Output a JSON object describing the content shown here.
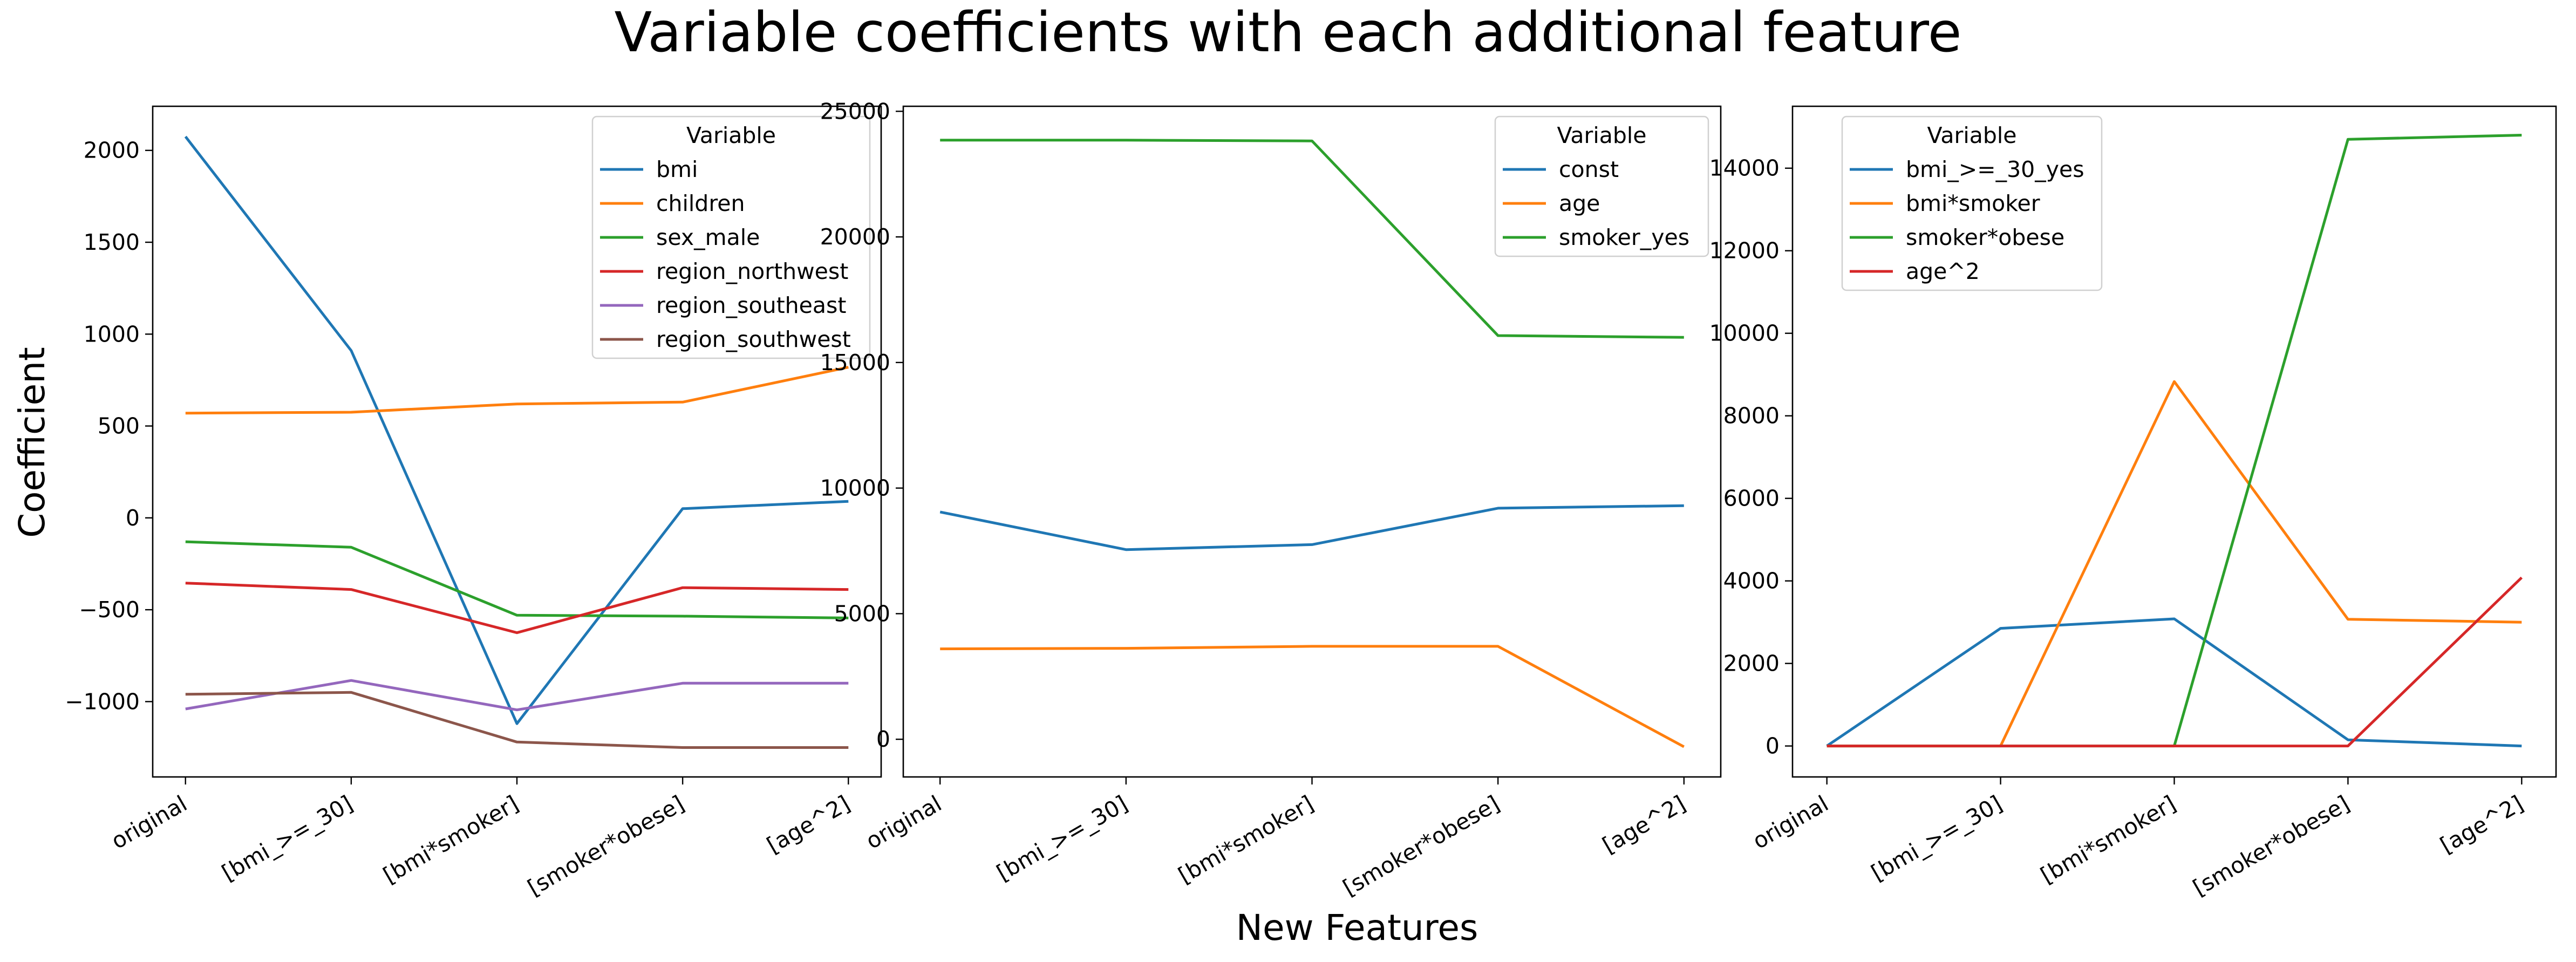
{
  "figure": {
    "title": "Variable coefficients with each additional feature",
    "xlabel": "New Features",
    "ylabel": "Coefficient"
  },
  "chart_data": [
    {
      "type": "line",
      "categories": [
        "original",
        "[bmi_>=_30]",
        "[bmi*smoker]",
        "[smoker*obese]",
        "[age^2]"
      ],
      "ylim": [
        -1410,
        2240
      ],
      "yticks": [
        -1000,
        -500,
        0,
        500,
        1000,
        1500,
        2000
      ],
      "grid": false,
      "legend": {
        "title": "Variable",
        "placement": "upper right"
      },
      "series": [
        {
          "name": "bmi",
          "color": "#1f77b4",
          "values": [
            2075,
            910,
            -1120,
            50,
            90
          ]
        },
        {
          "name": "children",
          "color": "#ff7f0e",
          "values": [
            570,
            575,
            620,
            630,
            820
          ]
        },
        {
          "name": "sex_male",
          "color": "#2ca02c",
          "values": [
            -130,
            -160,
            -530,
            -535,
            -545
          ]
        },
        {
          "name": "region_northwest",
          "color": "#d62728",
          "values": [
            -355,
            -390,
            -625,
            -380,
            -390
          ]
        },
        {
          "name": "region_southeast",
          "color": "#9467bd",
          "values": [
            -1040,
            -885,
            -1045,
            -900,
            -900
          ]
        },
        {
          "name": "region_southwest",
          "color": "#8c564b",
          "values": [
            -960,
            -950,
            -1220,
            -1250,
            -1250
          ]
        }
      ]
    },
    {
      "type": "line",
      "categories": [
        "original",
        "[bmi_>=_30]",
        "[bmi*smoker]",
        "[smoker*obese]",
        "[age^2]"
      ],
      "ylim": [
        -1500,
        25200
      ],
      "yticks": [
        0,
        5000,
        10000,
        15000,
        20000,
        25000
      ],
      "grid": false,
      "legend": {
        "title": "Variable",
        "placement": "upper right"
      },
      "series": [
        {
          "name": "const",
          "color": "#1f77b4",
          "values": [
            9050,
            7550,
            7750,
            9200,
            9300
          ]
        },
        {
          "name": "age",
          "color": "#ff7f0e",
          "values": [
            3600,
            3620,
            3700,
            3700,
            -300
          ]
        },
        {
          "name": "smoker_yes",
          "color": "#2ca02c",
          "values": [
            23850,
            23850,
            23820,
            16070,
            16000
          ]
        }
      ]
    },
    {
      "type": "line",
      "categories": [
        "original",
        "[bmi_>=_30]",
        "[bmi*smoker]",
        "[smoker*obese]",
        "[age^2]"
      ],
      "ylim": [
        -750,
        15500
      ],
      "yticks": [
        0,
        2000,
        4000,
        6000,
        8000,
        10000,
        12000,
        14000
      ],
      "grid": false,
      "legend": {
        "title": "Variable",
        "placement": "upper left"
      },
      "series": [
        {
          "name": "bmi_>=_30_yes",
          "color": "#1f77b4",
          "values": [
            0,
            2850,
            3080,
            150,
            0
          ]
        },
        {
          "name": "bmi*smoker",
          "color": "#ff7f0e",
          "values": [
            0,
            0,
            8830,
            3070,
            3000
          ]
        },
        {
          "name": "smoker*obese",
          "color": "#2ca02c",
          "values": [
            0,
            0,
            0,
            14700,
            14800
          ]
        },
        {
          "name": "age^2",
          "color": "#d62728",
          "values": [
            0,
            0,
            0,
            0,
            4080
          ]
        }
      ]
    }
  ]
}
